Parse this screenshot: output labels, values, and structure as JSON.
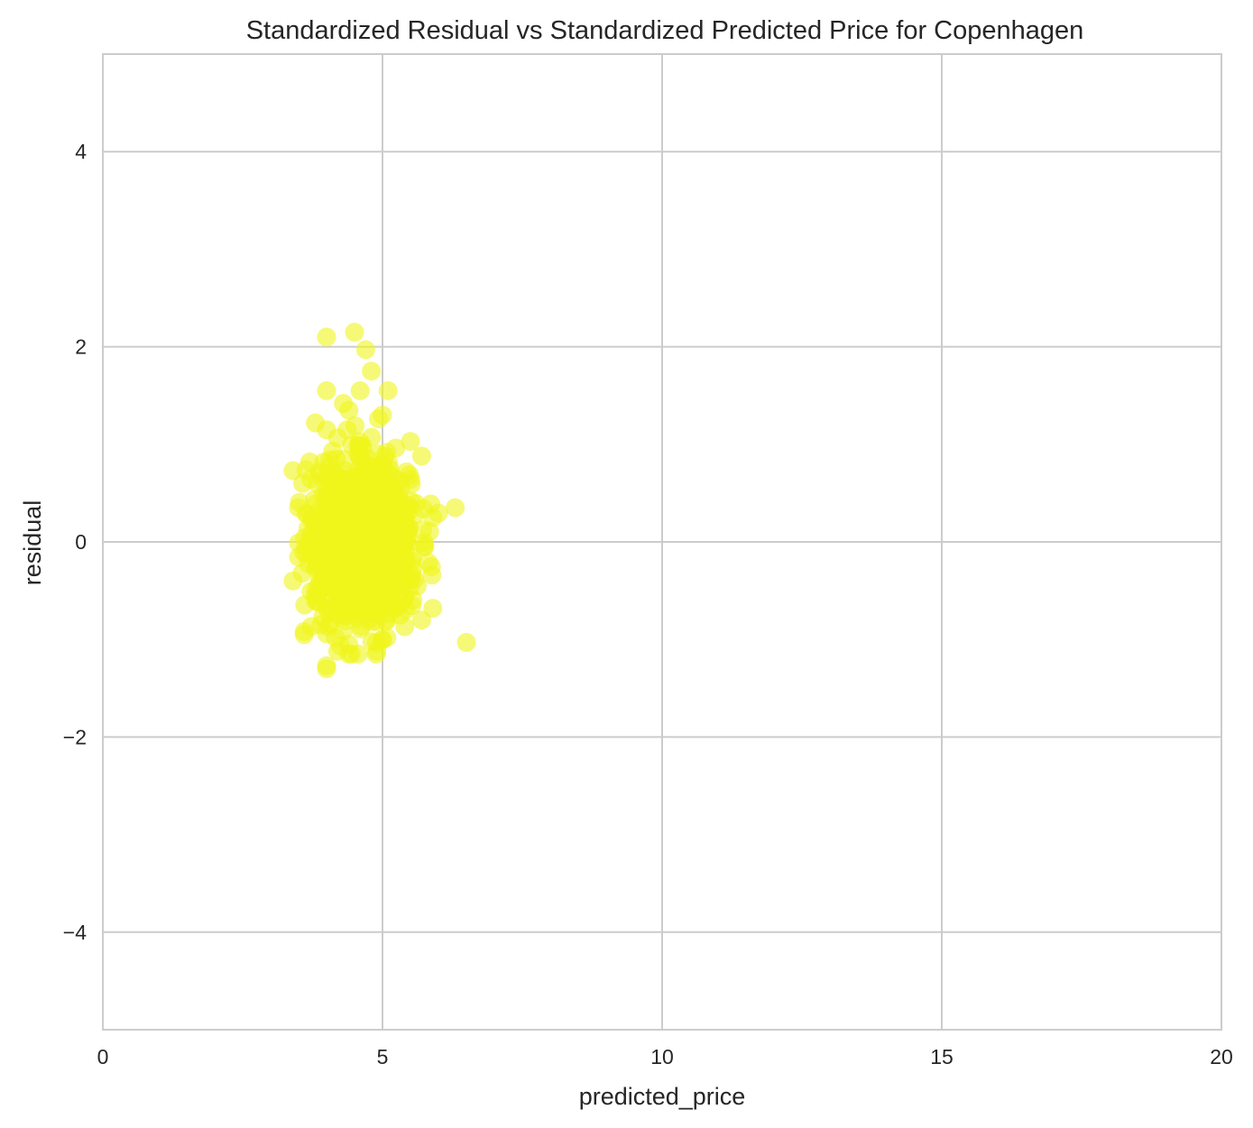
{
  "chart_data": {
    "type": "scatter",
    "title": "Standardized Residual vs Standardized Predicted Price for Copenhagen",
    "xlabel": "predicted_price",
    "ylabel": "residual",
    "xlim": [
      0,
      20
    ],
    "ylim": [
      -5,
      5
    ],
    "xticks": [
      0,
      5,
      10,
      15,
      20
    ],
    "yticks": [
      -4,
      -2,
      0,
      2,
      4
    ],
    "xtick_labels": [
      "0",
      "5",
      "10",
      "15",
      "20"
    ],
    "ytick_labels": [
      "−4",
      "−2",
      "0",
      "2",
      "4"
    ],
    "grid": true,
    "legend": "none",
    "point_color": "#f0f51a",
    "outliers": {
      "x": [
        4.5,
        4.0,
        4.7,
        4.8,
        4.0,
        4.6,
        5.1,
        4.3,
        4.4,
        3.8,
        4.0,
        5.0,
        5.5,
        5.7,
        3.4,
        3.7,
        6.3,
        5.9,
        6.5,
        5.9,
        3.4,
        3.6,
        3.6,
        4.0,
        4.2,
        4.4,
        4.9,
        5.0,
        5.7,
        4.0,
        3.9,
        3.8,
        3.5,
        4.4
      ],
      "y": [
        2.15,
        2.1,
        1.97,
        1.75,
        1.55,
        1.55,
        1.55,
        1.42,
        1.35,
        1.22,
        1.15,
        1.3,
        1.03,
        0.88,
        0.73,
        0.82,
        0.35,
        0.25,
        -1.03,
        -0.68,
        -0.4,
        -0.92,
        -0.95,
        -1.3,
        -1.12,
        -1.15,
        -1.12,
        -1.0,
        -0.8,
        -1.27,
        -0.85,
        -0.55,
        0.35,
        -1.05
      ]
    },
    "cluster": {
      "n_points": 1400,
      "mean_x": 4.65,
      "std_x": 0.42,
      "mean_y": 0.0,
      "std_y": 0.38,
      "x_range": [
        3.5,
        6.0
      ],
      "y_range": [
        -1.15,
        1.3
      ]
    }
  }
}
